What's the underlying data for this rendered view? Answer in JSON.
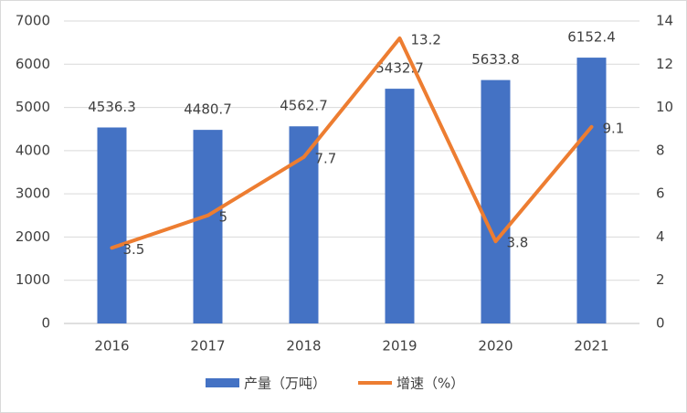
{
  "chart_data": {
    "type": "bar",
    "categories": [
      "2016",
      "2017",
      "2018",
      "2019",
      "2020",
      "2021"
    ],
    "series": [
      {
        "name": "产量（万吨）",
        "color": "#4472c4",
        "type": "bar",
        "values": [
          4536.3,
          4480.7,
          4562.7,
          5432.7,
          5633.8,
          6152.4
        ]
      },
      {
        "name": "增速（%）",
        "color": "#ed7d31",
        "type": "line",
        "axis": "y2",
        "values": [
          3.5,
          5,
          7.7,
          13.2,
          3.8,
          9.1
        ]
      }
    ],
    "ylim": [
      0,
      7000
    ],
    "yticks": [
      0,
      1000,
      2000,
      3000,
      4000,
      5000,
      6000,
      7000
    ],
    "y2lim": [
      0,
      14
    ],
    "y2ticks": [
      0,
      2,
      4,
      6,
      8,
      10,
      12,
      14
    ],
    "grid": true,
    "legend": "bottom"
  }
}
